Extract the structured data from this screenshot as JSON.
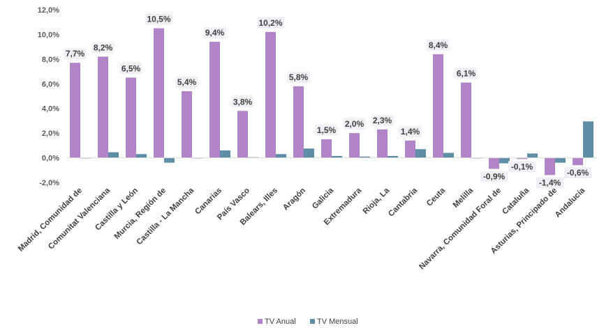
{
  "chart_data": {
    "type": "bar",
    "title": "",
    "xlabel": "",
    "ylabel": "",
    "ylim": [
      -2,
      12
    ],
    "ytick_step": 2,
    "ytick_labels": [
      "-2,0%",
      "0,0%",
      "2,0%",
      "4,0%",
      "6,0%",
      "8,0%",
      "10,0%",
      "12,0%"
    ],
    "grid": false,
    "legend_position": "bottom",
    "categories": [
      "Madrid, Comunidad de",
      "Comunitat Valenciana",
      "Castilla y León",
      "Murcia, Región de",
      "Castilla - La Mancha",
      "Canarias",
      "País Vasco",
      "Balears, Illes",
      "Aragón",
      "Galicia",
      "Extremadura",
      "Rioja, La",
      "Cantabria",
      "Ceuta",
      "Melilla",
      "Navarra, Comunidad Foral de",
      "Cataluña",
      "Asturias, Principado de",
      "Andalucía"
    ],
    "series": [
      {
        "name": "TV Anual",
        "color": "#B184C8",
        "values": [
          7.7,
          8.2,
          6.5,
          10.5,
          5.4,
          9.4,
          3.8,
          10.2,
          5.8,
          1.5,
          2.0,
          2.3,
          1.4,
          8.4,
          6.1,
          -0.9,
          -0.1,
          -1.4,
          -0.6
        ],
        "labels": [
          "7,7%",
          "8,2%",
          "6,5%",
          "10,5%",
          "5,4%",
          "9,4%",
          "3,8%",
          "10,2%",
          "5,8%",
          "1,5%",
          "2,0%",
          "2,3%",
          "1,4%",
          "8,4%",
          "6,1%",
          "-0,9%",
          "-0,1%",
          "-1,4%",
          "-0,6%"
        ]
      },
      {
        "name": "TV Mensual",
        "color": "#5F8FA6",
        "values": [
          -0.05,
          0.45,
          0.3,
          -0.4,
          -0.05,
          0.6,
          0.05,
          0.3,
          0.75,
          0.15,
          0.1,
          0.15,
          0.7,
          0.4,
          -0.05,
          -0.45,
          0.35,
          -0.4,
          2.95
        ]
      }
    ]
  }
}
